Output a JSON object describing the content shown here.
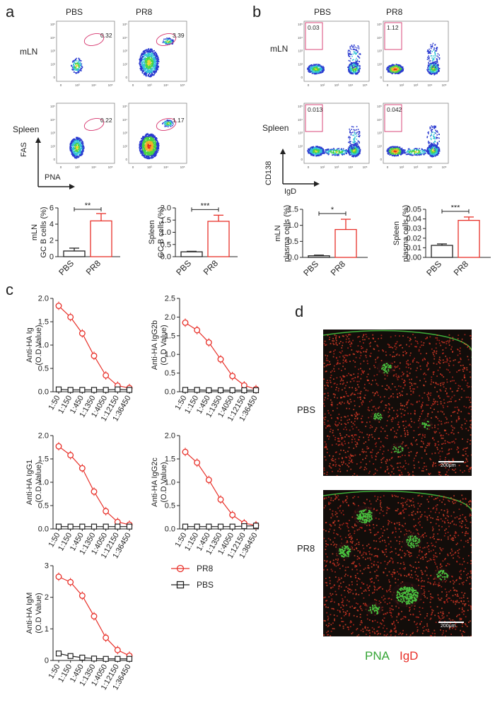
{
  "panel_letters": [
    "a",
    "b",
    "c",
    "d"
  ],
  "colors": {
    "pr8": "#e8312a",
    "pbs": "#222222",
    "gate": "#d6336c",
    "pna": "#35a535",
    "igd": "#e8312a"
  },
  "flow_a": {
    "col_labels": [
      "PBS",
      "PR8"
    ],
    "row_labels": [
      "mLN",
      "Spleen"
    ],
    "gate_values": [
      "0.32",
      "3.39",
      "0.22",
      "1.17"
    ],
    "x_axis": "PNA",
    "y_axis": "FAS",
    "x_ticks": [
      "0",
      "10³",
      "10⁴",
      "10⁵"
    ],
    "y_ticks": [
      "10⁵",
      "10⁴",
      "10³",
      "10²",
      "0"
    ]
  },
  "flow_b": {
    "col_labels": [
      "PBS",
      "PR8"
    ],
    "row_labels": [
      "mLN",
      "Spleen"
    ],
    "gate_values": [
      "0.03",
      "1.12",
      "0.013",
      "0.042"
    ],
    "x_axis": "IgD",
    "y_axis": "CD138",
    "x_ticks": [
      "0",
      "10²",
      "10³",
      "10⁴",
      "10⁵"
    ],
    "y_ticks": [
      "10⁵",
      "10⁴",
      "10³",
      "10²",
      "0"
    ]
  },
  "chart_data": [
    {
      "type": "bar",
      "categories": [
        "PBS",
        "PR8"
      ],
      "values": [
        0.7,
        4.4
      ],
      "errors": [
        0.35,
        0.9
      ],
      "ylabel": "mLN\nGC B cells (%)",
      "ylim": [
        0,
        6
      ],
      "yticks": [
        "0",
        "2",
        "4",
        "6"
      ],
      "significance": "**"
    },
    {
      "type": "bar",
      "categories": [
        "PBS",
        "PR8"
      ],
      "values": [
        0.2,
        1.45
      ],
      "errors": [
        0.02,
        0.25
      ],
      "ylabel": "Spleen\nGC B cells (%)",
      "ylim": [
        0,
        2.0
      ],
      "yticks": [
        "0.0",
        "0.5",
        "1.0",
        "1.5",
        "2.0"
      ],
      "significance": "***"
    },
    {
      "type": "bar",
      "categories": [
        "PBS",
        "PR8"
      ],
      "values": [
        0.05,
        0.87
      ],
      "errors": [
        0.02,
        0.32
      ],
      "ylabel": "mLN\nplasma cells (%)",
      "ylim": [
        0,
        1.5
      ],
      "yticks": [
        "0.0",
        "0.5",
        "1.0",
        "1.5"
      ],
      "significance": "*"
    },
    {
      "type": "bar",
      "categories": [
        "PBS",
        "PR8"
      ],
      "values": [
        0.0125,
        0.0385
      ],
      "errors": [
        0.0015,
        0.0035
      ],
      "ylabel": "Spleen\nplasma cells (%)",
      "ylim": [
        0,
        0.05
      ],
      "yticks": [
        "0.00",
        "0.01",
        "0.02",
        "0.03",
        "0.04",
        "0.05"
      ],
      "significance": "***"
    },
    {
      "type": "line",
      "x": [
        "1:50",
        "1:150",
        "1:450",
        "1:1350",
        "1:4050",
        "1:12150",
        "1:36450"
      ],
      "ylabel": "Anti-HA Ig\n(O.D Value)",
      "ylim": [
        0,
        2.0
      ],
      "yticks": [
        "0.0",
        "0.5",
        "1.0",
        "1.5",
        "2.0"
      ],
      "series": [
        {
          "name": "PR8",
          "values": [
            1.84,
            1.6,
            1.25,
            0.77,
            0.35,
            0.13,
            0.08
          ]
        },
        {
          "name": "PBS",
          "values": [
            0.05,
            0.04,
            0.04,
            0.04,
            0.04,
            0.05,
            0.04
          ]
        }
      ]
    },
    {
      "type": "line",
      "x": [
        "1:50",
        "1:150",
        "1:450",
        "1:1350",
        "1:4050",
        "1:12150",
        "1:36450"
      ],
      "ylabel": "Anti-HA IgG2b\n(O.D Value)",
      "ylim": [
        0,
        2.5
      ],
      "yticks": [
        "0.0",
        "0.5",
        "1.0",
        "1.5",
        "2.0",
        "2.5"
      ],
      "series": [
        {
          "name": "PR8",
          "values": [
            1.85,
            1.65,
            1.32,
            0.87,
            0.42,
            0.17,
            0.07
          ]
        },
        {
          "name": "PBS",
          "values": [
            0.05,
            0.05,
            0.04,
            0.04,
            0.04,
            0.04,
            0.04
          ]
        }
      ]
    },
    {
      "type": "line",
      "x": [
        "1:50",
        "1:150",
        "1:450",
        "1:1350",
        "1:4050",
        "1:12150",
        "1:36450"
      ],
      "ylabel": "Anti-HA IgG1\n(O.D Value)",
      "ylim": [
        0,
        2.0
      ],
      "yticks": [
        "0.0",
        "0.5",
        "1.0",
        "1.5",
        "2.0"
      ],
      "series": [
        {
          "name": "PR8",
          "values": [
            1.77,
            1.58,
            1.3,
            0.8,
            0.38,
            0.15,
            0.09
          ]
        },
        {
          "name": "PBS",
          "values": [
            0.05,
            0.05,
            0.05,
            0.05,
            0.05,
            0.05,
            0.05
          ]
        }
      ]
    },
    {
      "type": "line",
      "x": [
        "1:50",
        "1:150",
        "1:450",
        "1:1350",
        "1:4050",
        "1:12150",
        "1:36450"
      ],
      "ylabel": "Anti-HA IgG2c\n(O.D Value)",
      "ylim": [
        0,
        2.0
      ],
      "yticks": [
        "0.0",
        "0.5",
        "1.0",
        "1.5",
        "2.0"
      ],
      "series": [
        {
          "name": "PR8",
          "values": [
            1.65,
            1.42,
            1.05,
            0.63,
            0.3,
            0.12,
            0.08
          ]
        },
        {
          "name": "PBS",
          "values": [
            0.05,
            0.05,
            0.05,
            0.05,
            0.05,
            0.06,
            0.07
          ]
        }
      ]
    },
    {
      "type": "line",
      "x": [
        "1:50",
        "1:150",
        "1:450",
        "1:1350",
        "1:4050",
        "1:12150",
        "1:36450"
      ],
      "ylabel": "Anti-HA IgM\n(O.D Value)",
      "ylim": [
        0,
        3
      ],
      "yticks": [
        "0",
        "1",
        "2",
        "3"
      ],
      "series": [
        {
          "name": "PR8",
          "values": [
            2.65,
            2.48,
            2.05,
            1.4,
            0.72,
            0.33,
            0.15
          ]
        },
        {
          "name": "PBS",
          "values": [
            0.22,
            0.14,
            0.09,
            0.06,
            0.05,
            0.05,
            0.05
          ]
        }
      ]
    }
  ],
  "legend": {
    "items": [
      "PR8",
      "PBS"
    ]
  },
  "micro": {
    "row_labels": [
      "PBS",
      "PR8"
    ],
    "scale_bar": "200μm",
    "stain_labels": [
      "PNA",
      "IgD"
    ]
  }
}
